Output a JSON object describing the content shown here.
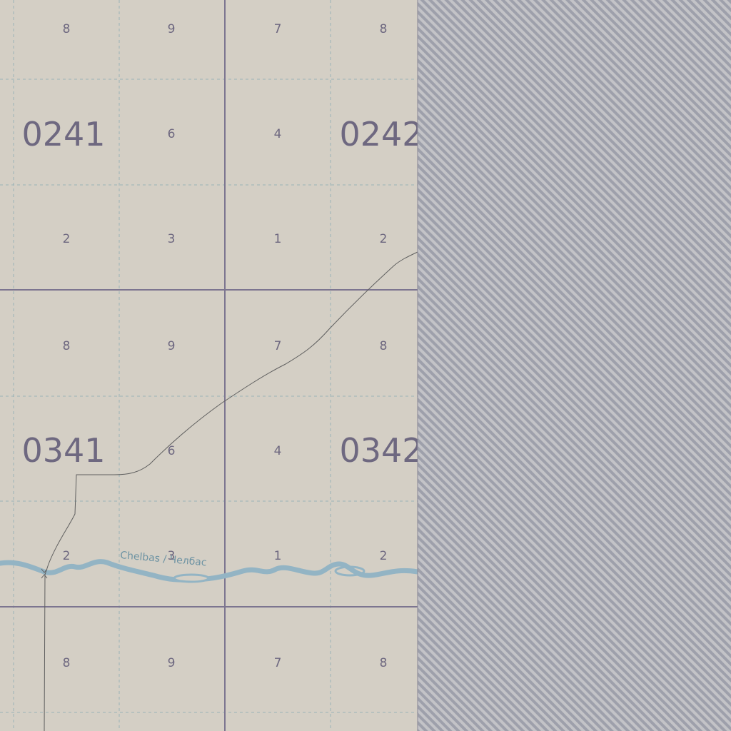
{
  "map": {
    "colors": {
      "background": "#d4cfc5",
      "major_grid": "#7c7590",
      "minor_grid": "#9ab3b6",
      "label": "#6e6880",
      "river": "#93b4c4",
      "river_label": "#6d93a3",
      "road": "#5f5f5f",
      "out_of_area_hatch": "#9ea0ab"
    },
    "sheets": [
      {
        "label": "0241"
      },
      {
        "label": "0242"
      },
      {
        "label": "0341"
      },
      {
        "label": "0342"
      }
    ],
    "cell_labels": {
      "top_row": [
        "8",
        "9",
        "7",
        "8"
      ],
      "middle_row": [
        "6",
        "4"
      ],
      "bottom_row": [
        "2",
        "3",
        "1",
        "2"
      ]
    },
    "river": {
      "label": "Chelbas / Челбас"
    },
    "out_of_area": {
      "pattern": "diagonal-hatch"
    }
  }
}
